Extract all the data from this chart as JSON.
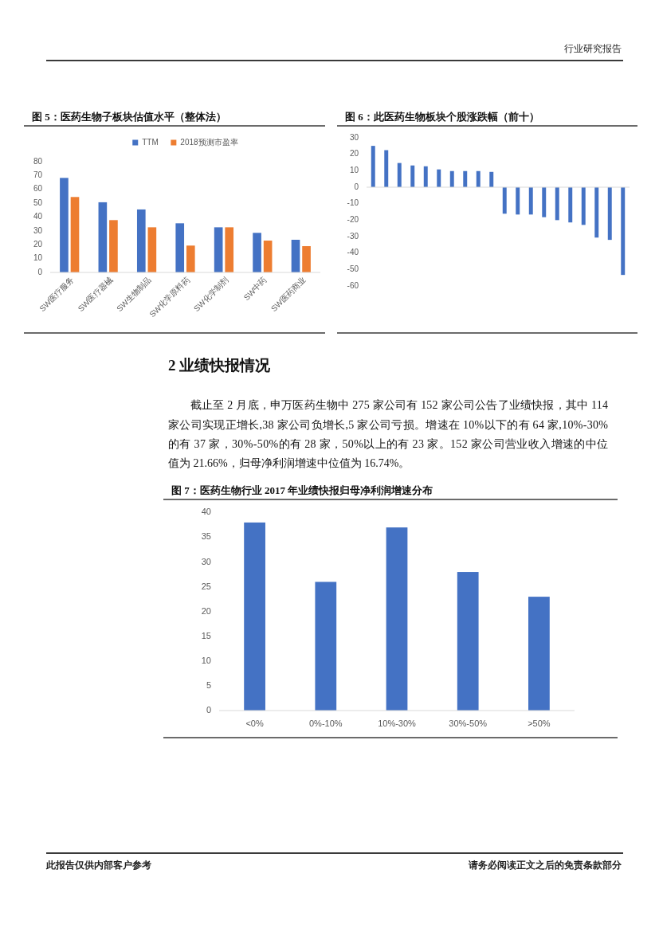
{
  "chart_data": [
    {
      "type": "bar",
      "title": "图 5：医药生物子板块估值水平（整体法）",
      "annotations": [
        "行业研究报告"
      ],
      "categories": [
        "SW医疗服务",
        "SW医疗器械",
        "SW生物制品",
        "SW化学原料药",
        "SW化学制剂",
        "SW中药",
        "SW医药商业"
      ],
      "series": [
        {
          "name": "TTM",
          "color": "#4472c4",
          "values": [
            68.3,
            50.7,
            45.5,
            35.5,
            32.6,
            28.6,
            23.6
          ]
        },
        {
          "name": "2018预测市盈率",
          "color": "#ed7d31",
          "values": [
            54.5,
            37.8,
            32.6,
            19.4,
            32.6,
            23.0,
            19.0
          ]
        }
      ],
      "ylim": [
        0,
        80
      ],
      "yticks": [
        0,
        10,
        20,
        30,
        40,
        50,
        60,
        70,
        80
      ],
      "legend": "top"
    },
    {
      "type": "bar",
      "title": "图 6：此医药生物板块个股涨跌幅（前十）",
      "categories": [
        null,
        null,
        null,
        null,
        null,
        null,
        null,
        null,
        null,
        null,
        null,
        null,
        null,
        null,
        null,
        null,
        null,
        null,
        null,
        null
      ],
      "values": [
        25.1,
        22.5,
        14.7,
        13.2,
        12.7,
        10.8,
        9.8,
        9.8,
        9.8,
        9.3,
        -16.1,
        -16.6,
        -16.6,
        -18.2,
        -20.0,
        -21.4,
        -22.9,
        -30.6,
        -32.0,
        -53.3
      ],
      "color": "#4472c4",
      "ylim": [
        -60,
        30
      ],
      "yticks": [
        -60,
        -50,
        -40,
        -30,
        -20,
        -10,
        0,
        10,
        20,
        30
      ]
    },
    {
      "type": "other",
      "title": "2 业绩快报情况",
      "annotations": [
        "截止至 2 月底，申万医药生物中 275 家公司有 152 家公司公告了业绩快报，其中 114",
        "家公司实现正增长,38 家公司负增长,5 家公司亏损。增速在 10%以下的有 64 家,10%-30%",
        "的有 37 家，30%-50%的有 28 家，50%以上的有 23 家。152 家公司营业收入增速的中位",
        "值为 21.66%，归母净利润增速中位值为 16.74%。"
      ]
    },
    {
      "type": "bar",
      "title": "图 7：医药生物行业 2017 年业绩快报归母净利润增速分布",
      "annotations": [
        "此报告仅供内部客户参考",
        "请务必阅读正文之后的免责条款部分"
      ],
      "categories": [
        "<0%",
        "0%-10%",
        "10%-30%",
        "30%-50%",
        ">50%"
      ],
      "values": [
        38,
        26,
        37,
        28,
        23
      ],
      "color": "#4472c4",
      "ylim": [
        0,
        40
      ],
      "yticks": [
        0,
        5,
        10,
        15,
        20,
        25,
        30,
        35,
        40
      ]
    }
  ]
}
